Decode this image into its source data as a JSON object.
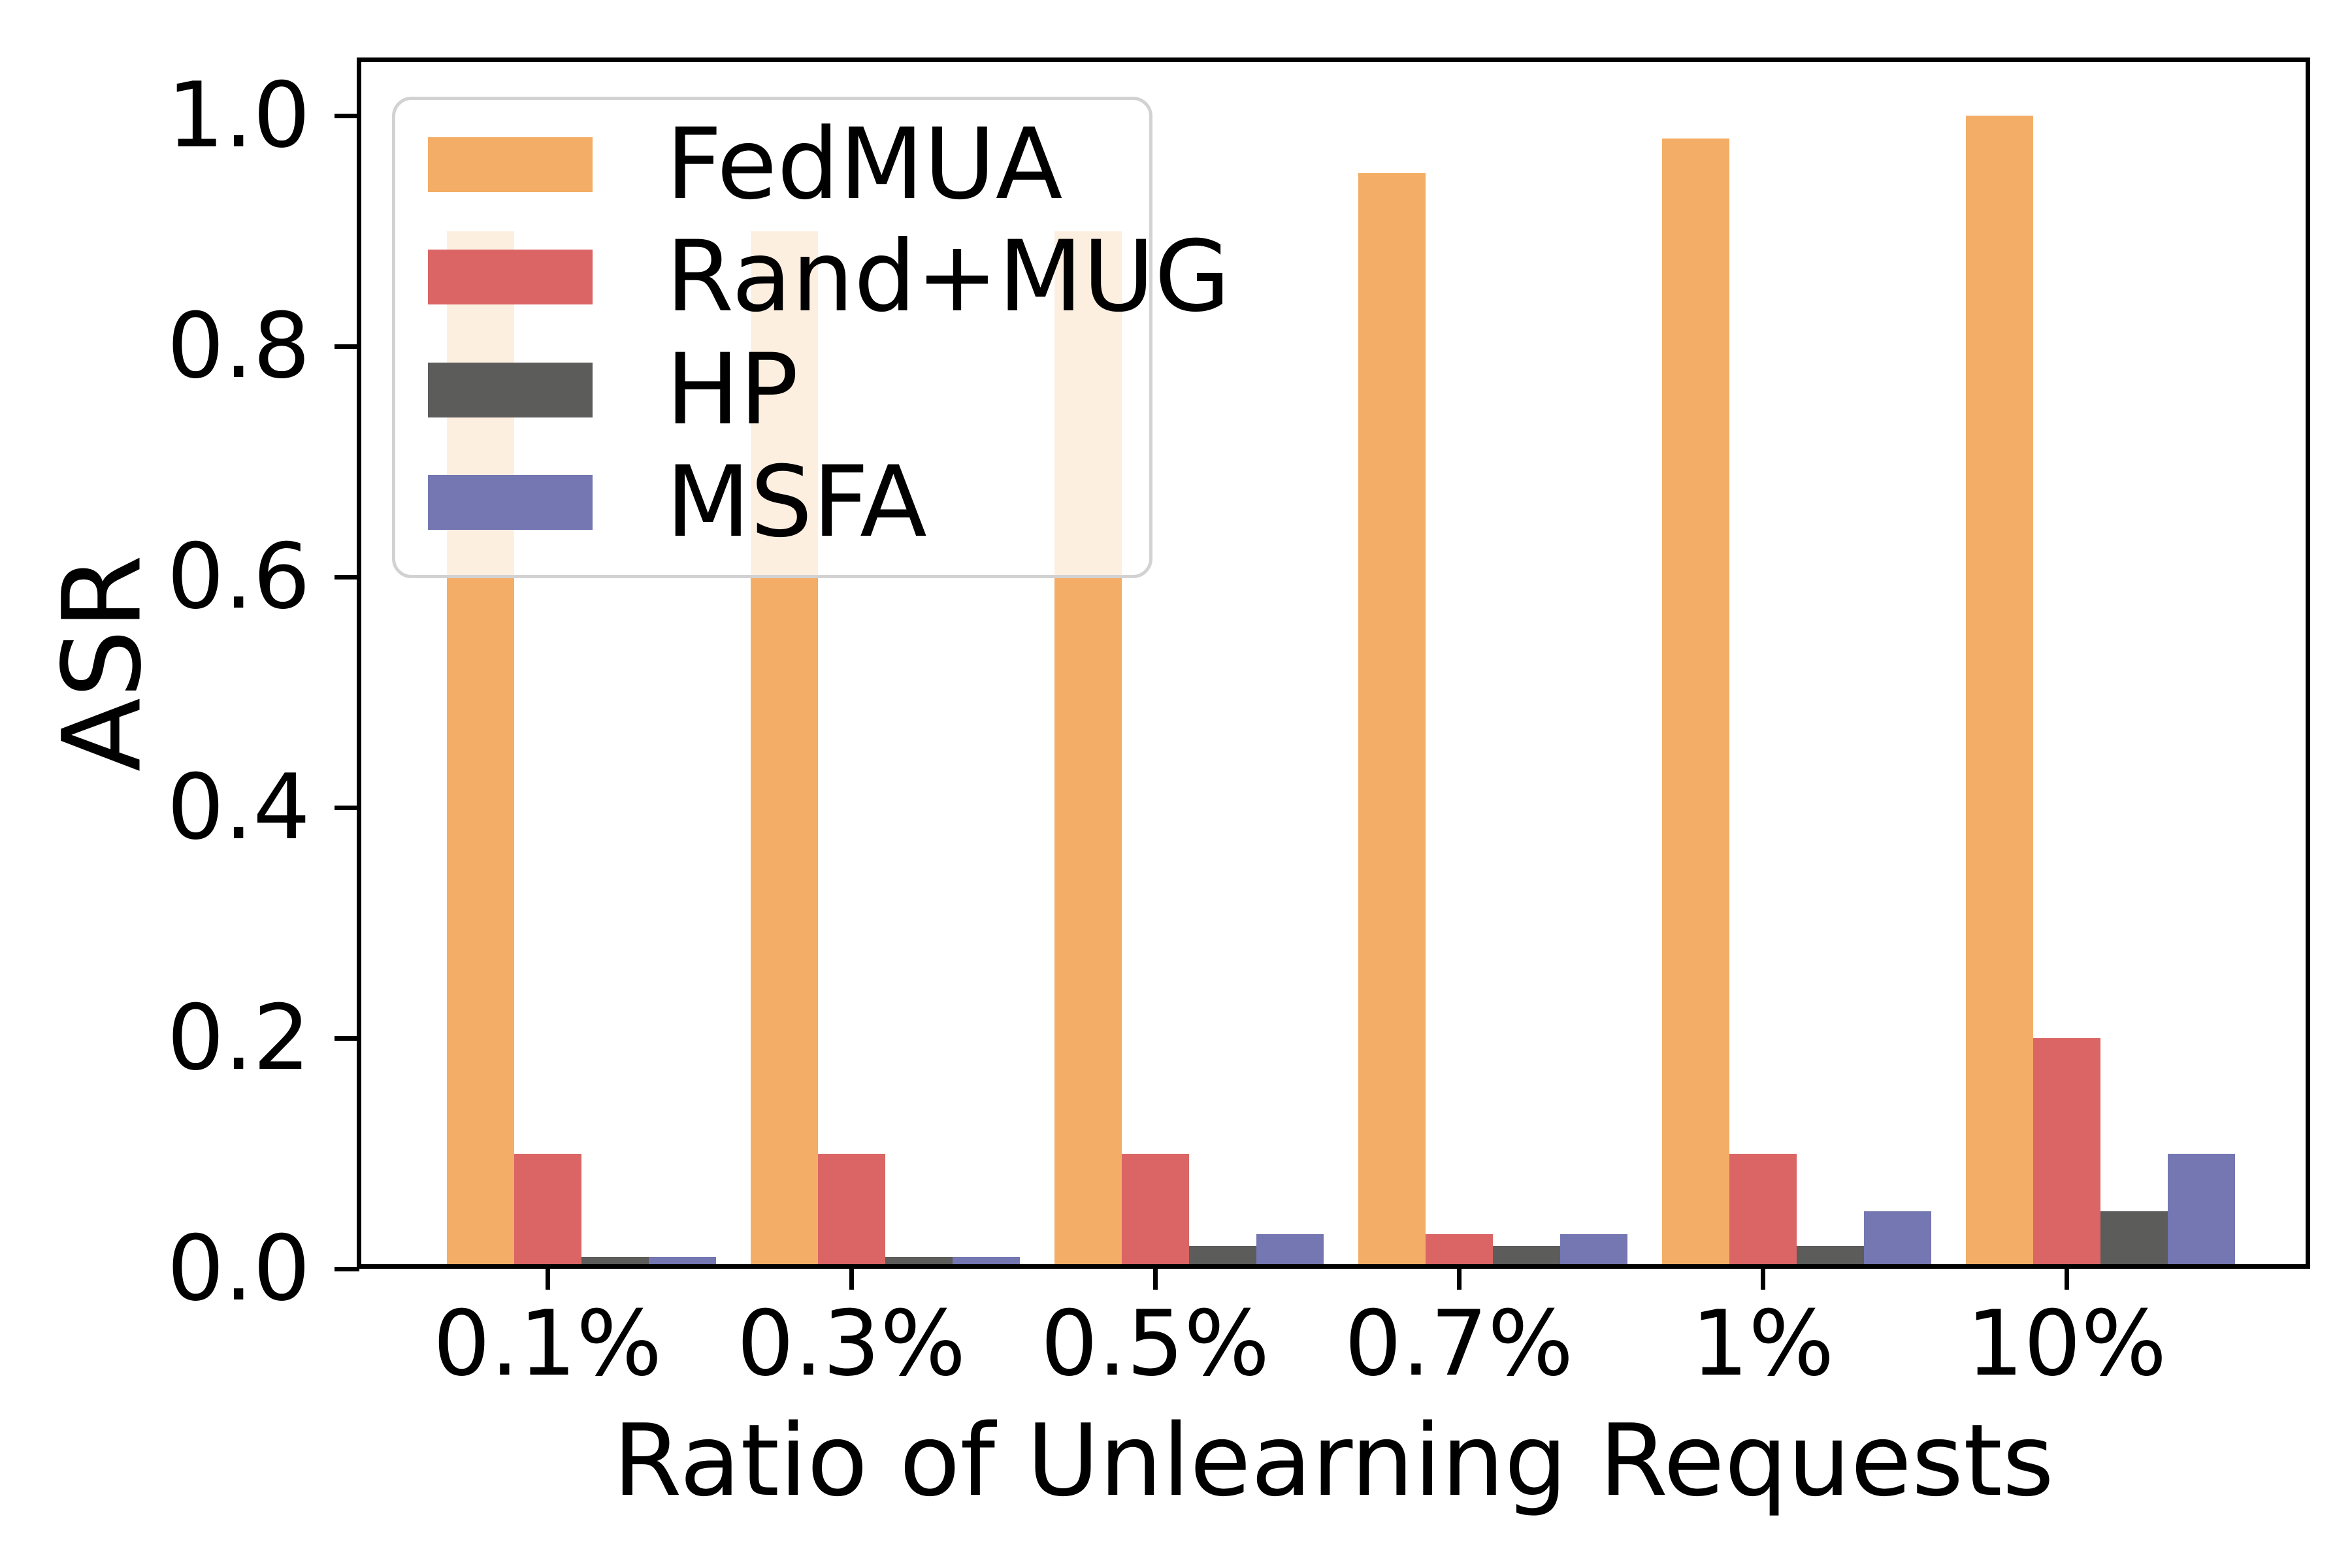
{
  "chart_data": {
    "type": "bar",
    "title": "",
    "categories": [
      "0.1%",
      "0.3%",
      "0.5%",
      "0.7%",
      "1%",
      "10%"
    ],
    "series": [
      {
        "name": "FedMUA",
        "color": "#F4AD66",
        "values": [
          0.9,
          0.9,
          0.9,
          0.95,
          0.98,
          1.0
        ]
      },
      {
        "name": "Rand+MUG",
        "color": "#DB6565",
        "values": [
          0.1,
          0.1,
          0.1,
          0.03,
          0.1,
          0.2
        ]
      },
      {
        "name": "HP",
        "color": "#5C5C5A",
        "values": [
          0.01,
          0.01,
          0.02,
          0.02,
          0.02,
          0.05
        ]
      },
      {
        "name": "MSFA",
        "color": "#7477B2",
        "values": [
          0.01,
          0.01,
          0.03,
          0.03,
          0.05,
          0.1
        ]
      }
    ],
    "xlabel": "Ratio of Unlearning Requests",
    "ylabel": "ASR",
    "ylim": [
      0,
      1.05
    ],
    "y_tick_values": [
      1.0,
      0.8,
      0.6,
      0.4,
      0.2,
      0.0
    ],
    "y_tick_labels": [
      "1.0",
      "0.8",
      "0.6",
      "0.4",
      "0.2",
      "0.0"
    ],
    "grid": false,
    "legend_position": "upper left"
  },
  "colors": {
    "background": "#FFFFFF",
    "spine": "#000000",
    "tick": "#000000",
    "text": "#000000",
    "legend_border": "#D2D2D2",
    "legend_background": "rgba(255,255,255,0.8)"
  }
}
